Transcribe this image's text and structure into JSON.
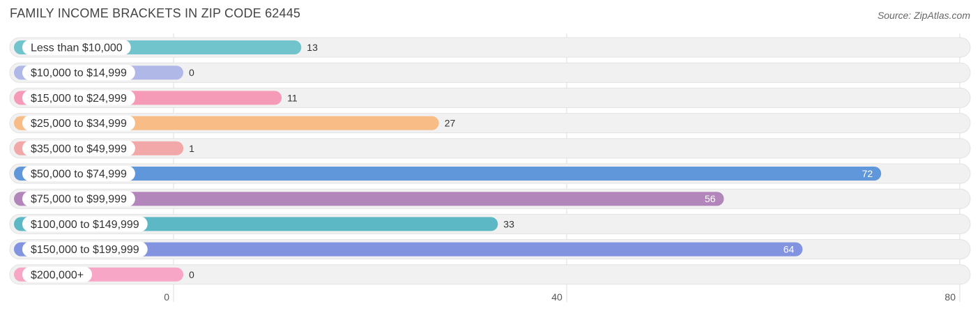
{
  "title": "FAMILY INCOME BRACKETS IN ZIP CODE 62445",
  "source": "Source: ZipAtlas.com",
  "chart_data": {
    "type": "bar",
    "orientation": "horizontal",
    "title": "FAMILY INCOME BRACKETS IN ZIP CODE 62445",
    "categories": [
      "Less than $10,000",
      "$10,000 to $14,999",
      "$15,000 to $24,999",
      "$25,000 to $34,999",
      "$35,000 to $49,999",
      "$50,000 to $74,999",
      "$75,000 to $99,999",
      "$100,000 to $149,999",
      "$150,000 to $199,999",
      "$200,000+"
    ],
    "values": [
      13,
      0,
      11,
      27,
      1,
      72,
      56,
      33,
      64,
      0
    ],
    "colors": [
      "#72c4cc",
      "#b0b8e8",
      "#f59bb8",
      "#f8bd87",
      "#f2a8a8",
      "#5f97da",
      "#b386bb",
      "#5cb8c4",
      "#8293e0",
      "#f7a6c6"
    ],
    "xlim": [
      0,
      80
    ],
    "xticks": [
      0,
      40,
      80
    ],
    "grid": true
  }
}
